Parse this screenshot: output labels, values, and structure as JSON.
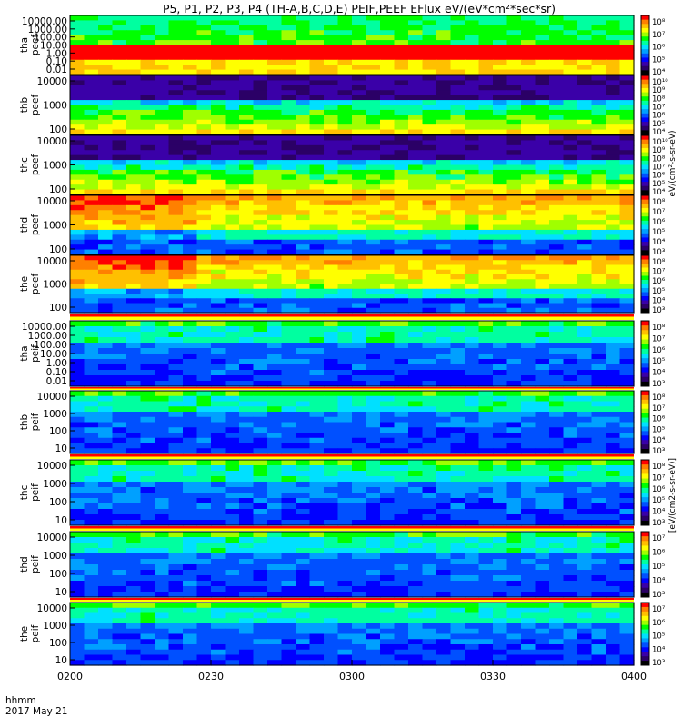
{
  "title": "P5, P1, P2, P3, P4 (TH-A,B,C,D,E) PEIF,PEEF EFlux eV/(eV*cm²*sec*sr)",
  "time_axis": {
    "ticks": [
      "0200",
      "0230",
      "0300",
      "0330",
      "0400"
    ],
    "label_line1": "hhmm",
    "label_line2": "2017 May 21"
  },
  "colors": {
    "palette": [
      "#000000",
      "#2b0066",
      "#3a00a8",
      "#0000ff",
      "#0050ff",
      "#00a0ff",
      "#00e0ff",
      "#00ffa0",
      "#00ff00",
      "#a0ff00",
      "#ffff00",
      "#ffc000",
      "#ff8000",
      "#ff0000"
    ],
    "flag_red": "#ff0000",
    "flag_yellow": "#ffff00"
  },
  "chart_data": {
    "type": "heatmap",
    "x_range": [
      "0200",
      "0400"
    ],
    "panels": [
      {
        "probe": "tha",
        "species": "peef",
        "ylabel": [
          "tha",
          "peef"
        ],
        "yticks": [
          "10000.00",
          "1000.00",
          "100.00",
          "10.00",
          "1.00",
          "0.10",
          "0.01"
        ],
        "cbar_ticks": [
          "10⁸",
          "10⁷",
          "10⁶",
          "10⁵",
          "10⁴"
        ]
      },
      {
        "probe": "thb",
        "species": "peef",
        "ylabel": [
          "thb",
          "peef"
        ],
        "yticks": [
          "10000",
          "1000",
          "100"
        ],
        "cbar_ticks": [
          "10¹⁰",
          "10⁹",
          "10⁸",
          "10⁷",
          "10⁶",
          "10⁵",
          "10⁴"
        ]
      },
      {
        "probe": "thc",
        "species": "peef",
        "ylabel": [
          "thc",
          "peef"
        ],
        "yticks": [
          "10000",
          "1000",
          "100"
        ],
        "cbar_ticks": [
          "10¹⁰",
          "10⁹",
          "10⁸",
          "10⁷",
          "10⁶",
          "10⁵",
          "10⁴"
        ]
      },
      {
        "probe": "thd",
        "species": "peef",
        "ylabel": [
          "thd",
          "peef"
        ],
        "yticks": [
          "10000",
          "1000",
          "100"
        ],
        "cbar_ticks": [
          "10⁸",
          "10⁷",
          "10⁶",
          "10⁵",
          "10⁴",
          "10³"
        ]
      },
      {
        "probe": "the",
        "species": "peef",
        "ylabel": [
          "the",
          "peef"
        ],
        "yticks": [
          "10000",
          "1000",
          "100"
        ],
        "cbar_ticks": [
          "10⁸",
          "10⁷",
          "10⁶",
          "10⁵",
          "10⁴",
          "10³"
        ]
      },
      {
        "probe": "tha",
        "species": "peif",
        "ylabel": [
          "tha",
          "peif"
        ],
        "yticks": [
          "10000.00",
          "1000.00",
          "100.00",
          "10.00",
          "1.00",
          "0.10",
          "0.01"
        ],
        "cbar_ticks": [
          "10⁸",
          "10⁷",
          "10⁶",
          "10⁵",
          "10⁴",
          "10³"
        ]
      },
      {
        "probe": "thb",
        "species": "peif",
        "ylabel": [
          "thb",
          "peif"
        ],
        "yticks": [
          "10000",
          "1000",
          "100",
          "10"
        ],
        "cbar_ticks": [
          "10⁸",
          "10⁷",
          "10⁶",
          "10⁵",
          "10⁴",
          "10³"
        ]
      },
      {
        "probe": "thc",
        "species": "peif",
        "ylabel": [
          "thc",
          "peif"
        ],
        "yticks": [
          "10000",
          "1000",
          "100",
          "10"
        ],
        "cbar_ticks": [
          "10⁸",
          "10⁷",
          "10⁶",
          "10⁵",
          "10⁴",
          "10³"
        ]
      },
      {
        "probe": "thd",
        "species": "peif",
        "ylabel": [
          "thd",
          "peif"
        ],
        "yticks": [
          "10000",
          "1000",
          "100",
          "10"
        ],
        "cbar_ticks": [
          "10⁷",
          "10⁶",
          "10⁵",
          "10⁴",
          "10³"
        ]
      },
      {
        "probe": "the",
        "species": "peif",
        "ylabel": [
          "the",
          "peif"
        ],
        "yticks": [
          "10000",
          "1000",
          "100",
          "10"
        ],
        "cbar_ticks": [
          "10⁷",
          "10⁶",
          "10⁵",
          "10⁴",
          "10³"
        ]
      }
    ],
    "cbar_label_peef": "eV/(cm²-s-sr-eV)",
    "cbar_label_peif": "[eV/(cm2-s-sr-eV)]"
  }
}
